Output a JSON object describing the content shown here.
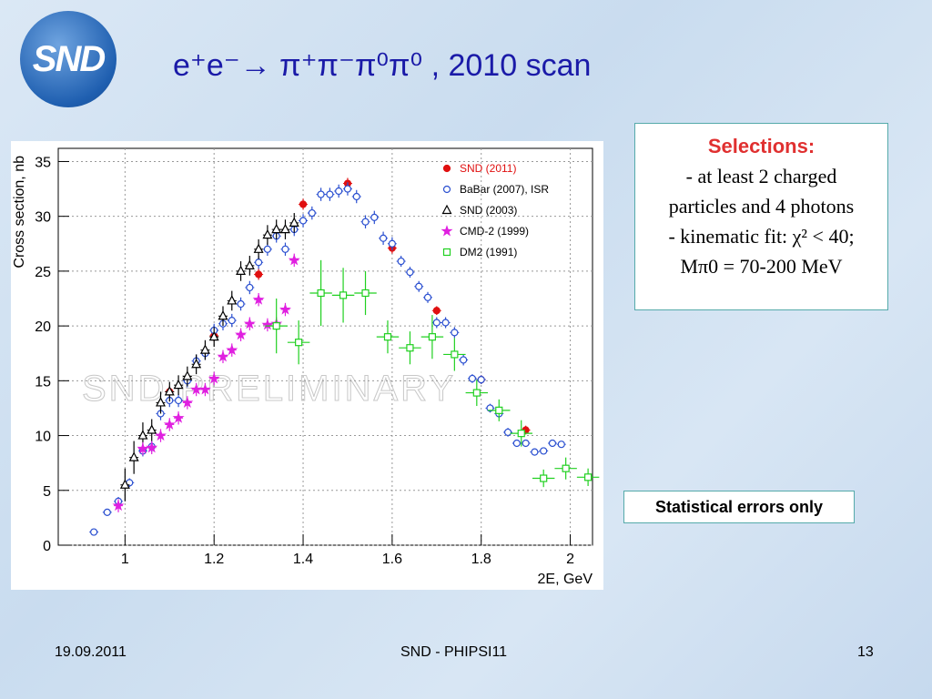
{
  "logo": "SND",
  "title": "e⁺e⁻→ π⁺π⁻π⁰π⁰ , 2010 scan",
  "selections": {
    "heading": "Selections:",
    "lines": [
      "- at least 2 charged",
      "particles and 4 photons",
      "- kinematic fit: χ² < 40;",
      "Mπ0 = 70-200 MeV"
    ]
  },
  "note": "Statistical errors only",
  "footer": {
    "date": "19.09.2011",
    "center": "SND - PHIPSI11",
    "page": "13"
  },
  "chart_data": {
    "type": "scatter",
    "xlabel": "2E, GeV",
    "ylabel": "Cross section, nb",
    "watermark": "SND PRELIMINARY",
    "xlim": [
      0.85,
      2.05
    ],
    "ylim": [
      0,
      36.2
    ],
    "xticks": [
      1,
      1.2,
      1.4,
      1.6,
      1.8,
      2
    ],
    "yticks": [
      0,
      5,
      10,
      15,
      20,
      25,
      30,
      35
    ],
    "grid": true,
    "legend": "upper right",
    "series": [
      {
        "name": "SND (2011)",
        "color": "#e01010",
        "marker": "filled-circle",
        "x": [
          1.1,
          1.2,
          1.3,
          1.4,
          1.5,
          1.6,
          1.7,
          1.8,
          1.9
        ],
        "values": [
          14.0,
          19.1,
          24.7,
          31.1,
          33.0,
          27.1,
          21.4,
          15.1,
          10.5
        ],
        "errors": [
          0.5,
          0.5,
          0.5,
          0.5,
          0.5,
          0.5,
          0.4,
          0.4,
          0.4
        ]
      },
      {
        "name": "BaBar (2007), ISR",
        "color": "#2a4fd0",
        "marker": "open-circle",
        "x": [
          0.93,
          0.96,
          0.985,
          1.01,
          1.04,
          1.06,
          1.08,
          1.1,
          1.12,
          1.14,
          1.16,
          1.18,
          1.2,
          1.22,
          1.24,
          1.26,
          1.28,
          1.3,
          1.32,
          1.34,
          1.36,
          1.38,
          1.4,
          1.42,
          1.44,
          1.46,
          1.48,
          1.5,
          1.52,
          1.54,
          1.56,
          1.58,
          1.6,
          1.62,
          1.64,
          1.66,
          1.68,
          1.7,
          1.72,
          1.74,
          1.76,
          1.78,
          1.8,
          1.82,
          1.84,
          1.86,
          1.88,
          1.9,
          1.92,
          1.94,
          1.96,
          1.98
        ],
        "values": [
          1.2,
          3.0,
          4.0,
          5.7,
          8.6,
          9.0,
          12.0,
          13.2,
          13.2,
          15.0,
          16.8,
          17.5,
          19.6,
          20.2,
          20.5,
          22.0,
          23.5,
          25.8,
          27.0,
          28.2,
          27.0,
          28.8,
          29.6,
          30.3,
          32.0,
          32.0,
          32.3,
          32.5,
          31.8,
          29.5,
          29.9,
          28.0,
          27.5,
          25.9,
          24.9,
          23.6,
          22.6,
          20.3,
          20.3,
          19.4,
          16.9,
          15.2,
          15.1,
          12.5,
          12.0,
          10.3,
          9.3,
          9.3,
          8.5,
          8.6,
          9.3,
          9.2
        ],
        "errors": [
          0.2,
          0.3,
          0.4,
          0.4,
          0.5,
          0.5,
          0.6,
          0.6,
          0.6,
          0.6,
          0.6,
          0.6,
          0.6,
          0.6,
          0.6,
          0.6,
          0.6,
          0.6,
          0.6,
          0.6,
          0.6,
          0.6,
          0.6,
          0.6,
          0.6,
          0.6,
          0.6,
          0.6,
          0.6,
          0.6,
          0.6,
          0.6,
          0.6,
          0.5,
          0.5,
          0.5,
          0.5,
          0.5,
          0.5,
          0.5,
          0.5,
          0.4,
          0.4,
          0.4,
          0.4,
          0.4,
          0.3,
          0.3,
          0.3,
          0.3,
          0.3,
          0.3
        ]
      },
      {
        "name": "SND (2003)",
        "color": "#000000",
        "marker": "open-triangle",
        "x": [
          1.0,
          1.02,
          1.04,
          1.06,
          1.08,
          1.1,
          1.12,
          1.14,
          1.16,
          1.18,
          1.2,
          1.22,
          1.24,
          1.26,
          1.28,
          1.3,
          1.32,
          1.34,
          1.36,
          1.38
        ],
        "values": [
          5.5,
          8.0,
          10.0,
          10.5,
          13.0,
          14.0,
          14.6,
          15.4,
          16.5,
          17.8,
          19.0,
          20.9,
          22.3,
          25.0,
          25.5,
          27.0,
          28.3,
          28.8,
          28.8,
          29.4
        ],
        "errors": [
          1.5,
          1.5,
          1.2,
          1.0,
          1.0,
          0.9,
          0.9,
          0.9,
          0.9,
          0.9,
          0.9,
          0.9,
          0.9,
          0.9,
          0.9,
          0.9,
          0.9,
          0.9,
          0.9,
          0.9
        ]
      },
      {
        "name": "CMD-2 (1999)",
        "color": "#e020e0",
        "marker": "star",
        "x": [
          0.985,
          1.04,
          1.06,
          1.08,
          1.1,
          1.12,
          1.14,
          1.16,
          1.18,
          1.2,
          1.22,
          1.24,
          1.26,
          1.28,
          1.3,
          1.32,
          1.34,
          1.36,
          1.38
        ],
        "values": [
          3.6,
          8.8,
          8.9,
          10.0,
          11.0,
          11.6,
          13.0,
          14.2,
          14.2,
          15.2,
          17.2,
          17.8,
          19.2,
          20.2,
          22.4,
          20.1,
          20.2,
          21.5,
          26.0
        ],
        "errors": [
          0.6,
          0.6,
          0.6,
          0.6,
          0.6,
          0.6,
          0.6,
          0.6,
          0.6,
          0.6,
          0.6,
          0.6,
          0.6,
          0.6,
          0.6,
          0.6,
          0.6,
          0.6,
          0.6
        ]
      },
      {
        "name": "DM2 (1991)",
        "color": "#20d020",
        "marker": "open-square",
        "x": [
          1.34,
          1.39,
          1.44,
          1.49,
          1.54,
          1.59,
          1.64,
          1.69,
          1.74,
          1.79,
          1.84,
          1.89,
          1.94,
          1.99,
          2.04
        ],
        "xerrors": [
          0.025,
          0.025,
          0.025,
          0.025,
          0.025,
          0.025,
          0.025,
          0.025,
          0.025,
          0.025,
          0.025,
          0.025,
          0.025,
          0.025,
          0.025
        ],
        "values": [
          20.0,
          18.5,
          23.0,
          22.8,
          23.0,
          19.0,
          18.0,
          19.0,
          17.4,
          13.9,
          12.3,
          10.2,
          6.1,
          7.0,
          6.2
        ],
        "errors": [
          2.5,
          2.0,
          3.0,
          2.5,
          2.0,
          1.5,
          1.5,
          2.0,
          1.5,
          1.2,
          1.0,
          1.2,
          0.8,
          1.0,
          0.8
        ]
      }
    ]
  }
}
